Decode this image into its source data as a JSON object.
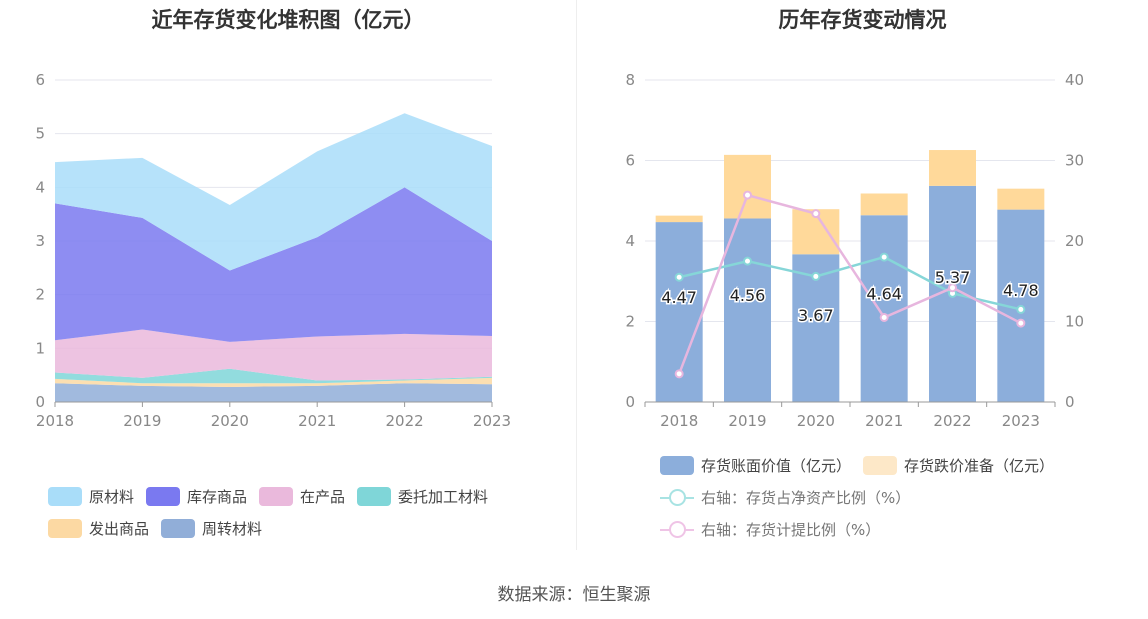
{
  "left": {
    "title": "近年存货变化堆积图（亿元）",
    "legend": [
      {
        "label": "原材料",
        "color": "#a9ddf9"
      },
      {
        "label": "库存商品",
        "color": "#7a79f0"
      },
      {
        "label": "在产品",
        "color": "#eab9dc"
      },
      {
        "label": "委托加工材料",
        "color": "#7fd6d8"
      },
      {
        "label": "发出商品",
        "color": "#fcd9a3"
      },
      {
        "label": "周转材料",
        "color": "#91aed8"
      }
    ]
  },
  "right": {
    "title": "历年存货变动情况",
    "legend": [
      {
        "label": "存货账面价值（亿元）",
        "color": "#8caedb",
        "kind": "bar"
      },
      {
        "label": "存货跌价准备（亿元）",
        "color": "#fde8c8",
        "kind": "bar"
      },
      {
        "label": "右轴：存货占净资产比例（%）",
        "color": "#a8e3e3",
        "kind": "line"
      },
      {
        "label": "右轴：存货计提比例（%）",
        "color": "#efc4e6",
        "kind": "line"
      }
    ]
  },
  "source": "数据来源：恒生聚源",
  "chart_data": [
    {
      "type": "area",
      "stacked": true,
      "title": "近年存货变化堆积图（亿元）",
      "x": [
        "2018",
        "2019",
        "2020",
        "2021",
        "2022",
        "2023"
      ],
      "ylim": [
        0,
        6
      ],
      "yticks": [
        0,
        1,
        2,
        3,
        4,
        5,
        6
      ],
      "grid": true,
      "legend_position": "bottom",
      "series": [
        {
          "name": "周转材料",
          "color": "#91aed8",
          "values": [
            0.35,
            0.3,
            0.28,
            0.3,
            0.35,
            0.33
          ]
        },
        {
          "name": "发出商品",
          "color": "#fcd9a3",
          "values": [
            0.08,
            0.05,
            0.07,
            0.05,
            0.05,
            0.12
          ]
        },
        {
          "name": "委托加工材料",
          "color": "#7fd6d8",
          "values": [
            0.12,
            0.1,
            0.27,
            0.05,
            0.02,
            0.02
          ]
        },
        {
          "name": "在产品",
          "color": "#eab9dc",
          "values": [
            0.6,
            0.9,
            0.5,
            0.82,
            0.85,
            0.76
          ]
        },
        {
          "name": "库存商品",
          "color": "#7a79f0",
          "values": [
            2.55,
            2.08,
            1.33,
            1.85,
            2.73,
            1.77
          ]
        },
        {
          "name": "原材料",
          "color": "#a9ddf9",
          "values": [
            0.77,
            1.12,
            1.22,
            1.6,
            1.38,
            1.77
          ]
        }
      ]
    },
    {
      "type": "bar",
      "stacked": true,
      "title": "历年存货变动情况",
      "categories": [
        "2018",
        "2019",
        "2020",
        "2021",
        "2022",
        "2023"
      ],
      "ylim": [
        0,
        8
      ],
      "yticks": [
        0,
        2,
        4,
        6,
        8
      ],
      "y2lim": [
        0,
        40
      ],
      "y2ticks": [
        0,
        10,
        20,
        30,
        40
      ],
      "legend_position": "bottom",
      "series": [
        {
          "name": "存货账面价值（亿元）",
          "color": "#8caedb",
          "values": [
            4.47,
            4.56,
            3.67,
            4.64,
            5.37,
            4.78
          ],
          "labels": [
            "4.47",
            "4.56",
            "3.67",
            "4.64",
            "5.37",
            "4.78"
          ]
        },
        {
          "name": "存货跌价准备（亿元）",
          "color": "#ffd99a",
          "values": [
            0.16,
            1.58,
            1.12,
            0.54,
            0.89,
            0.52
          ]
        }
      ],
      "line_series": [
        {
          "name": "右轴：存货占净资产比例（%）",
          "axis": "right",
          "color": "#86d6d8",
          "values": [
            15.5,
            17.5,
            15.6,
            18.0,
            13.5,
            11.5
          ]
        },
        {
          "name": "右轴：存货计提比例（%）",
          "axis": "right",
          "color": "#e7b6de",
          "values": [
            3.5,
            25.7,
            23.4,
            10.5,
            14.2,
            9.8
          ]
        }
      ]
    }
  ]
}
